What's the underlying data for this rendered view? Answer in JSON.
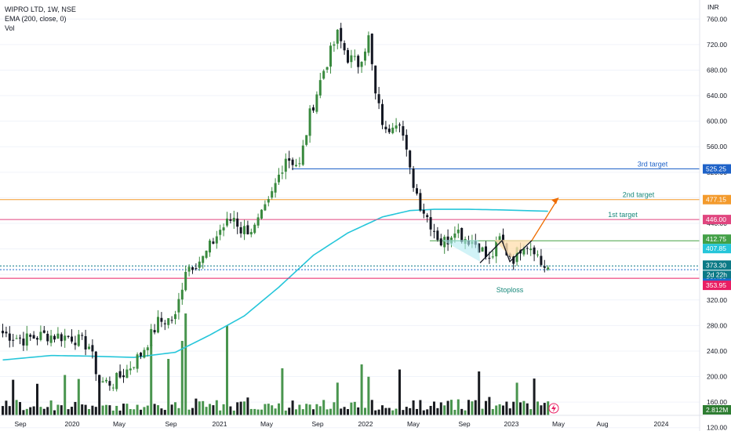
{
  "legend": {
    "symbol": "WIPRO LTD, 1W, NSE",
    "ema": "EMA (200, close, 0)",
    "vol": "Vol"
  },
  "currency": "INR",
  "chart_data": {
    "type": "candlestick",
    "ylim": [
      100,
      780
    ],
    "y_ticks": [
      120,
      160,
      200,
      240,
      280,
      320,
      360,
      400,
      440,
      480,
      520,
      560,
      600,
      640,
      680,
      720,
      760
    ],
    "x_ticks": [
      "Sep",
      "2020",
      "May",
      "Sep",
      "2021",
      "May",
      "Sep",
      "2022",
      "May",
      "Sep",
      "2023",
      "May",
      "Aug",
      "2024"
    ],
    "close_anchors": [
      [
        0,
        268
      ],
      [
        6,
        258
      ],
      [
        12,
        265
      ],
      [
        20,
        262
      ],
      [
        25,
        248
      ],
      [
        28,
        192
      ],
      [
        32,
        190
      ],
      [
        36,
        210
      ],
      [
        40,
        235
      ],
      [
        45,
        285
      ],
      [
        50,
        292
      ],
      [
        53,
        370
      ],
      [
        58,
        385
      ],
      [
        63,
        430
      ],
      [
        67,
        450
      ],
      [
        69,
        430
      ],
      [
        73,
        432
      ],
      [
        77,
        470
      ],
      [
        82,
        545
      ],
      [
        86,
        530
      ],
      [
        89,
        610
      ],
      [
        93,
        680
      ],
      [
        97,
        735
      ],
      [
        100,
        700
      ],
      [
        103,
        690
      ],
      [
        106,
        730
      ],
      [
        108,
        640
      ],
      [
        111,
        580
      ],
      [
        113,
        600
      ],
      [
        115,
        605
      ],
      [
        118,
        520
      ],
      [
        121,
        470
      ],
      [
        125,
        430
      ],
      [
        127,
        410
      ],
      [
        129,
        415
      ],
      [
        131,
        435
      ],
      [
        133,
        420
      ],
      [
        135,
        415
      ],
      [
        138,
        405
      ],
      [
        141,
        380
      ],
      [
        144,
        415
      ],
      [
        146,
        395
      ],
      [
        148,
        386
      ],
      [
        151,
        410
      ],
      [
        154,
        402
      ],
      [
        156,
        376
      ],
      [
        158,
        370
      ]
    ],
    "ema_series": {
      "name": "EMA (200, close, 0)",
      "anchors": [
        [
          0,
          226
        ],
        [
          14,
          233
        ],
        [
          25,
          232
        ],
        [
          38,
          230
        ],
        [
          50,
          238
        ],
        [
          60,
          265
        ],
        [
          70,
          295
        ],
        [
          80,
          340
        ],
        [
          90,
          390
        ],
        [
          100,
          425
        ],
        [
          110,
          450
        ],
        [
          118,
          460
        ],
        [
          125,
          462
        ],
        [
          135,
          462
        ],
        [
          145,
          461
        ],
        [
          158,
          459
        ]
      ]
    },
    "volume_axis_label": "2.812M",
    "price_lines": [
      {
        "label": "3rd target",
        "value": 525.25,
        "badge": "525.25",
        "color": "#1e62c8"
      },
      {
        "label": "2nd target",
        "value": 477.15,
        "badge": "477.15",
        "color": "#f39a2c"
      },
      {
        "label": "1st target",
        "value": 446.0,
        "badge": "446.00",
        "color": "#e0467f"
      },
      {
        "label": "",
        "value": 412.75,
        "badge": "412.75",
        "color": "#43a047"
      },
      {
        "label": "",
        "value": 407.85,
        "badge": "407.85",
        "color": "#26c6da"
      },
      {
        "label": "",
        "value": 373.3,
        "badge": "373.30",
        "color": "#0c7a86"
      },
      {
        "label": "",
        "value": 367.5,
        "badge": "367.50",
        "color": "#1c6cd0"
      },
      {
        "label": "Stoploss",
        "value": 353.95,
        "badge": "353.95",
        "color": "#e91e63"
      }
    ],
    "countdown_badge": "2d 22h",
    "annotations": [
      "3rd target",
      "2nd target",
      "1st target",
      "Stoploss"
    ]
  },
  "colors": {
    "up": "#3a8a3f",
    "down": "#131722",
    "ema": "#26c6da",
    "arrow": "#ef6c00",
    "neckline": "#7cc67e",
    "stoploss_text": "#17887a",
    "target_text": "#17887a",
    "third_target_text": "#1e62c8"
  }
}
